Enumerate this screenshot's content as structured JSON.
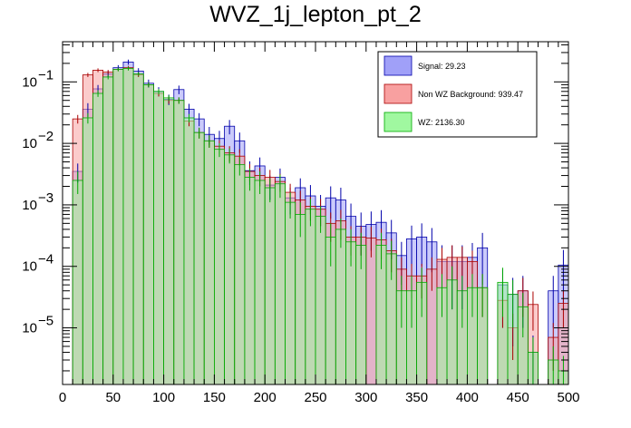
{
  "chart_data": {
    "type": "histogram",
    "title": "WVZ_1j_lepton_pt_2",
    "xlabel": "",
    "ylabel": "",
    "y_scale": "log",
    "xlim": [
      0,
      500
    ],
    "ylim": [
      1.2e-06,
      0.45
    ],
    "bin_width": 10,
    "x_ticks": [
      0,
      50,
      100,
      150,
      200,
      250,
      300,
      350,
      400,
      450,
      500
    ],
    "x_tick_labels": [
      "0",
      "50",
      "100",
      "150",
      "200",
      "250",
      "300",
      "350",
      "400",
      "450",
      "500"
    ],
    "y_ticks": [
      1e-05,
      0.0001,
      0.001,
      0.01,
      0.1
    ],
    "y_tick_labels": [
      {
        "base": "10",
        "exp": "−5"
      },
      {
        "base": "10",
        "exp": "−4"
      },
      {
        "base": "10",
        "exp": "−3"
      },
      {
        "base": "10",
        "exp": "−2"
      },
      {
        "base": "10",
        "exp": "−1"
      }
    ],
    "legend_position": "top-right",
    "series": [
      {
        "name": "Signal: 29.23",
        "fill": "#a0a0f8",
        "line": "#0000aa",
        "bin_low_edges": [
          10,
          20,
          30,
          40,
          50,
          60,
          70,
          80,
          90,
          100,
          110,
          120,
          130,
          140,
          150,
          160,
          170,
          180,
          190,
          200,
          210,
          220,
          230,
          240,
          250,
          260,
          270,
          280,
          290,
          300,
          310,
          320,
          330,
          340,
          350,
          360,
          370,
          380,
          390,
          400,
          410,
          430,
          440,
          450,
          460,
          480,
          490
        ],
        "values": [
          0.0035,
          0.036,
          0.077,
          0.135,
          0.17,
          0.21,
          0.15,
          0.095,
          0.07,
          0.052,
          0.075,
          0.036,
          0.025,
          0.014,
          0.012,
          0.019,
          0.011,
          0.0036,
          0.0043,
          0.0021,
          0.0028,
          0.0013,
          0.0019,
          0.0014,
          0.00095,
          0.0013,
          0.0012,
          0.00065,
          0.00045,
          0.00048,
          0.00052,
          0.00035,
          0.00015,
          0.00028,
          0.0003,
          0.00025,
          0.00012,
          0.00012,
          0.00012,
          0.00014,
          0.0002,
          5e-05,
          3.5e-05,
          4e-05,
          4e-06,
          4e-05,
          0.000105
        ],
        "errors_low": [
          0.0012,
          0.009,
          0.012,
          0.015,
          0.017,
          0.02,
          0.017,
          0.014,
          0.012,
          0.01,
          0.012,
          0.008,
          0.006,
          0.0045,
          0.004,
          0.005,
          0.004,
          0.0015,
          0.0016,
          0.0009,
          0.0011,
          0.0006,
          0.0008,
          0.0007,
          0.0005,
          0.0007,
          0.0007,
          0.0004,
          0.0003,
          0.0003,
          0.0003,
          0.00022,
          0.0001,
          0.00018,
          0.0002,
          0.00017,
          0.0001,
          0.0001,
          0.0001,
          0.0001,
          0.00015,
          4e-05,
          3e-05,
          3e-05,
          3.5e-06,
          3e-05,
          8e-05
        ],
        "errors_high": [
          0.0012,
          0.009,
          0.012,
          0.015,
          0.017,
          0.02,
          0.017,
          0.014,
          0.012,
          0.01,
          0.012,
          0.008,
          0.006,
          0.0045,
          0.004,
          0.005,
          0.004,
          0.0015,
          0.0016,
          0.0009,
          0.0011,
          0.0006,
          0.0008,
          0.0007,
          0.0005,
          0.0007,
          0.0007,
          0.0004,
          0.0003,
          0.0003,
          0.0003,
          0.00022,
          0.0001,
          0.00018,
          0.0002,
          0.00017,
          0.0001,
          0.0001,
          0.0001,
          0.0001,
          0.00015,
          4e-05,
          3e-05,
          3e-05,
          3.5e-06,
          3e-05,
          8e-05
        ]
      },
      {
        "name": "Non WZ Background: 939.47",
        "fill": "#f8a0a0",
        "line": "#aa0000",
        "bin_low_edges": [
          10,
          20,
          30,
          40,
          50,
          60,
          70,
          80,
          90,
          100,
          110,
          120,
          130,
          140,
          150,
          160,
          170,
          180,
          190,
          200,
          210,
          220,
          230,
          240,
          250,
          260,
          270,
          280,
          290,
          300,
          310,
          320,
          330,
          340,
          350,
          360,
          370,
          380,
          390,
          400,
          410,
          430,
          440,
          450,
          460,
          480,
          490
        ],
        "values": [
          0.025,
          0.13,
          0.155,
          0.145,
          0.16,
          0.17,
          0.13,
          0.09,
          0.065,
          0.05,
          0.05,
          0.023,
          0.015,
          0.011,
          0.009,
          0.007,
          0.0062,
          0.0035,
          0.003,
          0.0028,
          0.0024,
          0.0016,
          0.0012,
          0.00095,
          0.00085,
          0.0005,
          0.00055,
          0.0003,
          0.0003,
          0.00029,
          0.00027,
          0.00018,
          9e-05,
          7e-05,
          7e-05,
          9e-05,
          0.00013,
          0.00014,
          0.00014,
          0.00012,
          4.5e-05,
          2.8e-05,
          1e-05,
          4e-05,
          2.4e-05,
          7e-06,
          2.5e-05
        ],
        "errors_low": [
          0.004,
          0.01,
          0.011,
          0.011,
          0.011,
          0.012,
          0.01,
          0.008,
          0.007,
          0.006,
          0.006,
          0.004,
          0.003,
          0.0025,
          0.0022,
          0.002,
          0.0018,
          0.0011,
          0.001,
          0.0009,
          0.0008,
          0.0006,
          0.0005,
          0.0004,
          0.0004,
          0.00025,
          0.00028,
          0.00015,
          0.00015,
          0.00015,
          0.00014,
          0.0001,
          5e-05,
          4e-05,
          4e-05,
          5e-05,
          7e-05,
          8e-05,
          7e-05,
          6e-05,
          3e-05,
          1.8e-05,
          7e-06,
          2.5e-05,
          1.5e-05,
          5e-06,
          1.5e-05
        ],
        "errors_high": [
          0.004,
          0.01,
          0.011,
          0.011,
          0.011,
          0.012,
          0.01,
          0.008,
          0.007,
          0.006,
          0.006,
          0.004,
          0.003,
          0.0025,
          0.0022,
          0.002,
          0.0018,
          0.0011,
          0.001,
          0.0009,
          0.0008,
          0.0006,
          0.0005,
          0.0004,
          0.0004,
          0.00025,
          0.00028,
          0.00015,
          0.00015,
          0.00015,
          0.00014,
          0.0001,
          5e-05,
          4e-05,
          4e-05,
          5e-05,
          7e-05,
          8e-05,
          7e-05,
          6e-05,
          3e-05,
          1.8e-05,
          7e-06,
          2.5e-05,
          1.5e-05,
          5e-06,
          1.5e-05
        ]
      },
      {
        "name": "WZ: 2136.30",
        "fill": "#a0f8a0",
        "line": "#00aa00",
        "bin_low_edges": [
          10,
          20,
          30,
          40,
          50,
          60,
          70,
          80,
          90,
          100,
          110,
          120,
          130,
          140,
          150,
          160,
          170,
          180,
          190,
          200,
          210,
          220,
          230,
          240,
          250,
          260,
          270,
          280,
          290,
          300,
          310,
          320,
          330,
          340,
          350,
          360,
          370,
          380,
          390,
          400,
          410,
          430,
          440,
          450,
          460,
          480,
          490
        ],
        "values": [
          0.0025,
          0.026,
          0.065,
          0.12,
          0.16,
          0.165,
          0.135,
          0.09,
          0.07,
          0.055,
          0.05,
          0.026,
          0.015,
          0.011,
          0.008,
          0.0065,
          0.0045,
          0.0028,
          0.0025,
          0.0019,
          0.0022,
          0.0011,
          0.0007,
          0.00085,
          0.00065,
          0.0003,
          0.0004,
          0.00025,
          0.00022,
          0.0,
          0.00022,
          0.00016,
          4e-05,
          4e-05,
          5.5e-05,
          0.0,
          4.5e-05,
          6e-05,
          4e-05,
          4.5e-05,
          4.5e-05,
          5.5e-05,
          3.5e-05,
          2.2e-05,
          4e-06,
          3e-06,
          2e-06
        ],
        "errors_low": [
          0.001,
          0.005,
          0.008,
          0.01,
          0.011,
          0.012,
          0.01,
          0.008,
          0.007,
          0.006,
          0.006,
          0.004,
          0.003,
          0.0025,
          0.002,
          0.0018,
          0.0015,
          0.0011,
          0.001,
          0.0008,
          0.0009,
          0.0005,
          0.0004,
          0.0004,
          0.0003,
          0.0002,
          0.0002,
          0.00015,
          0.00013,
          0.0,
          0.00013,
          0.0001,
          3e-05,
          3e-05,
          4e-05,
          0.0,
          3e-05,
          4e-05,
          3e-05,
          3e-05,
          3e-05,
          4e-05,
          2.5e-05,
          1.5e-05,
          3e-06,
          2e-06,
          1.5e-06
        ],
        "errors_high": [
          0.001,
          0.005,
          0.008,
          0.01,
          0.011,
          0.012,
          0.01,
          0.008,
          0.007,
          0.006,
          0.006,
          0.004,
          0.003,
          0.0025,
          0.002,
          0.0018,
          0.0015,
          0.0011,
          0.001,
          0.0008,
          0.0009,
          0.0005,
          0.0004,
          0.0004,
          0.0003,
          0.0002,
          0.0002,
          0.00015,
          0.00013,
          0.0,
          0.00013,
          0.0001,
          3e-05,
          3e-05,
          4e-05,
          0.0,
          3e-05,
          4e-05,
          3e-05,
          3e-05,
          3e-05,
          4e-05,
          2.5e-05,
          1.5e-05,
          3e-06,
          2e-06,
          1.5e-06
        ]
      }
    ]
  }
}
